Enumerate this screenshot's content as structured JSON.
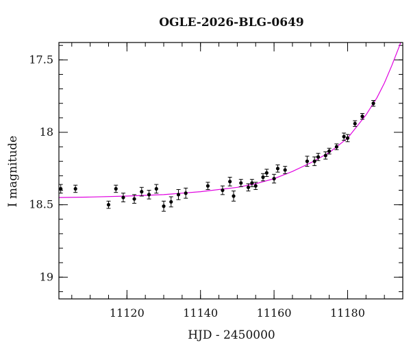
{
  "chart_data": {
    "type": "scatter",
    "title": "OGLE-2026-BLG-0649",
    "xlabel": "HJD - 2450000",
    "ylabel": "I magnitude",
    "xlim": [
      11101.5,
      11195
    ],
    "ylim": [
      19.15,
      17.38
    ],
    "y_inverted": true,
    "grid": false,
    "x_major_ticks": [
      11120,
      11140,
      11160,
      11180
    ],
    "x_minor_step": 5,
    "y_major_ticks": [
      17.5,
      18,
      18.5,
      19
    ],
    "y_minor_step": 0.1,
    "x_tick_labels": [
      "11120",
      "11140",
      "11160",
      "11180"
    ],
    "y_tick_labels": [
      "17.5",
      "18",
      "18.5",
      "19"
    ],
    "series": [
      {
        "type": "scatter",
        "color": "#000000",
        "points": [
          {
            "x": 11102,
            "y": 18.39,
            "err": 0.03
          },
          {
            "x": 11106,
            "y": 18.39,
            "err": 0.025
          },
          {
            "x": 11115,
            "y": 18.5,
            "err": 0.025
          },
          {
            "x": 11117,
            "y": 18.39,
            "err": 0.025
          },
          {
            "x": 11119,
            "y": 18.45,
            "err": 0.03
          },
          {
            "x": 11122,
            "y": 18.46,
            "err": 0.03
          },
          {
            "x": 11124,
            "y": 18.41,
            "err": 0.03
          },
          {
            "x": 11126,
            "y": 18.43,
            "err": 0.03
          },
          {
            "x": 11128,
            "y": 18.39,
            "err": 0.03
          },
          {
            "x": 11130,
            "y": 18.51,
            "err": 0.035
          },
          {
            "x": 11132,
            "y": 18.48,
            "err": 0.035
          },
          {
            "x": 11134,
            "y": 18.43,
            "err": 0.035
          },
          {
            "x": 11136,
            "y": 18.42,
            "err": 0.035
          },
          {
            "x": 11142,
            "y": 18.37,
            "err": 0.025
          },
          {
            "x": 11146,
            "y": 18.4,
            "err": 0.03
          },
          {
            "x": 11148,
            "y": 18.34,
            "err": 0.03
          },
          {
            "x": 11149,
            "y": 18.44,
            "err": 0.035
          },
          {
            "x": 11151,
            "y": 18.35,
            "err": 0.025
          },
          {
            "x": 11153,
            "y": 18.38,
            "err": 0.025
          },
          {
            "x": 11154,
            "y": 18.35,
            "err": 0.025
          },
          {
            "x": 11155,
            "y": 18.37,
            "err": 0.025
          },
          {
            "x": 11157,
            "y": 18.31,
            "err": 0.025
          },
          {
            "x": 11158,
            "y": 18.28,
            "err": 0.025
          },
          {
            "x": 11160,
            "y": 18.32,
            "err": 0.03
          },
          {
            "x": 11161,
            "y": 18.25,
            "err": 0.025
          },
          {
            "x": 11163,
            "y": 18.26,
            "err": 0.025
          },
          {
            "x": 11169,
            "y": 18.2,
            "err": 0.035
          },
          {
            "x": 11171,
            "y": 18.2,
            "err": 0.03
          },
          {
            "x": 11172,
            "y": 18.17,
            "err": 0.025
          },
          {
            "x": 11174,
            "y": 18.16,
            "err": 0.025
          },
          {
            "x": 11175,
            "y": 18.13,
            "err": 0.02
          },
          {
            "x": 11177,
            "y": 18.1,
            "err": 0.02
          },
          {
            "x": 11179,
            "y": 18.03,
            "err": 0.025
          },
          {
            "x": 11180,
            "y": 18.04,
            "err": 0.025
          },
          {
            "x": 11182,
            "y": 17.94,
            "err": 0.02
          },
          {
            "x": 11184,
            "y": 17.89,
            "err": 0.02
          },
          {
            "x": 11187,
            "y": 17.8,
            "err": 0.02
          }
        ]
      },
      {
        "type": "line",
        "color": "#e000e0",
        "x": [
          11101.5,
          11110,
          11120,
          11130,
          11140,
          11150,
          11155,
          11160,
          11165,
          11170,
          11175,
          11180,
          11185,
          11188,
          11190,
          11192,
          11194,
          11195
        ],
        "y": [
          18.45,
          18.447,
          18.44,
          18.43,
          18.41,
          18.38,
          18.355,
          18.32,
          18.27,
          18.21,
          18.14,
          18.04,
          17.88,
          17.76,
          17.66,
          17.54,
          17.41,
          17.34
        ]
      }
    ]
  }
}
